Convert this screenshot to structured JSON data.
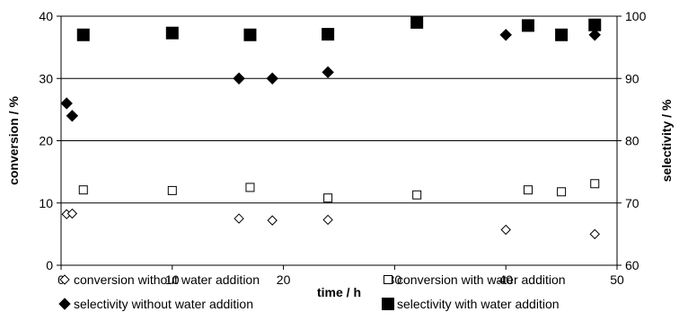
{
  "chart_data": {
    "type": "scatter",
    "xlabel": "time / h",
    "ylabel_left": "conversion / %",
    "ylabel_right": "selectivity / %",
    "xlim": [
      0,
      50
    ],
    "xticks": [
      0,
      10,
      20,
      30,
      40,
      50
    ],
    "ylim_left": [
      0,
      40
    ],
    "yticks_left": [
      0,
      10,
      20,
      30,
      40
    ],
    "ylim_right": [
      60,
      100
    ],
    "yticks_right": [
      60,
      70,
      80,
      90,
      100
    ],
    "grid": "horizontal",
    "legend_position": "bottom",
    "series": [
      {
        "name": "conversion without water addition",
        "axis": "left",
        "marker": "diamond-open",
        "points": [
          [
            0.5,
            8.2
          ],
          [
            1,
            8.3
          ],
          [
            16,
            7.5
          ],
          [
            19,
            7.2
          ],
          [
            24,
            7.3
          ],
          [
            40,
            5.7
          ],
          [
            48,
            5.0
          ]
        ]
      },
      {
        "name": "conversion with water addition",
        "axis": "left",
        "marker": "square-open",
        "points": [
          [
            2,
            12.1
          ],
          [
            10,
            12.0
          ],
          [
            17,
            12.5
          ],
          [
            24,
            10.8
          ],
          [
            32,
            11.3
          ],
          [
            42,
            12.1
          ],
          [
            45,
            11.8
          ],
          [
            48,
            13.1
          ]
        ]
      },
      {
        "name": "selectivity without water addition",
        "axis": "right",
        "marker": "diamond-filled",
        "points": [
          [
            0.5,
            86
          ],
          [
            1,
            84
          ],
          [
            16,
            90
          ],
          [
            19,
            90
          ],
          [
            24,
            91
          ],
          [
            40,
            97
          ],
          [
            48,
            97
          ]
        ]
      },
      {
        "name": "selectivity with water addition",
        "axis": "right",
        "marker": "square-filled",
        "points": [
          [
            2,
            97
          ],
          [
            10,
            97.3
          ],
          [
            17,
            97
          ],
          [
            24,
            97.1
          ],
          [
            32,
            99
          ],
          [
            42,
            98.5
          ],
          [
            45,
            97
          ],
          [
            48,
            98.6
          ]
        ]
      }
    ]
  }
}
